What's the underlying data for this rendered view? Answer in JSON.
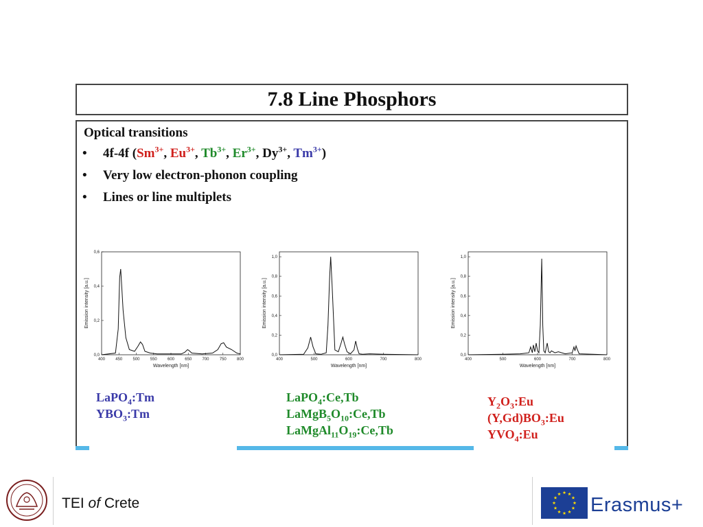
{
  "slide": {
    "title": "7.8 Line Phosphors",
    "section_title": "Optical transitions",
    "bullets": {
      "b1": {
        "prefix": "4f-4f (",
        "ions": [
          {
            "base": "Sm",
            "charge": "3+",
            "sep": ", ",
            "color": "#d0201c"
          },
          {
            "base": "Eu",
            "charge": "3+",
            "sep": ", ",
            "color": "#d0201c"
          },
          {
            "base": "Tb",
            "charge": "3+",
            "sep": ", ",
            "color": "#1f8a2a"
          },
          {
            "base": "Er",
            "charge": "3+",
            "sep": ", ",
            "color": "#1f8a2a"
          },
          {
            "base": "Dy",
            "charge": "3+",
            "sep": ", ",
            "color": "#111111"
          },
          {
            "base": "Tm",
            "charge": "3+",
            "sep": ")",
            "color": "#3a3aa8"
          }
        ]
      },
      "b2": "Very low electron-phonon coupling",
      "b3": "Lines or line multiplets"
    },
    "bullet_symbol": "•"
  },
  "chart_data": [
    {
      "type": "line",
      "xlabel": "Wavelength [nm]",
      "ylabel": "Emission intensity [a.u.]",
      "xlim": [
        400,
        800
      ],
      "ylim": [
        0,
        0.6
      ],
      "xticks": [
        "400",
        "450",
        "500",
        "550",
        "600",
        "650",
        "700",
        "750",
        "800"
      ],
      "yticks": [
        "0,0",
        "0,2",
        "0,4",
        "0,6"
      ],
      "x": [
        400,
        440,
        448,
        452,
        455,
        458,
        462,
        470,
        480,
        495,
        505,
        512,
        518,
        525,
        540,
        560,
        600,
        630,
        640,
        648,
        652,
        660,
        690,
        720,
        735,
        745,
        752,
        760,
        775,
        790,
        800
      ],
      "y": [
        0,
        0.01,
        0.15,
        0.45,
        0.5,
        0.4,
        0.26,
        0.1,
        0.03,
        0.02,
        0.05,
        0.075,
        0.06,
        0.02,
        0.01,
        0.005,
        0.005,
        0.005,
        0.015,
        0.03,
        0.025,
        0.01,
        0.005,
        0.01,
        0.03,
        0.065,
        0.07,
        0.045,
        0.03,
        0.01,
        0.005
      ]
    },
    {
      "type": "line",
      "xlabel": "Wavelength [nm]",
      "ylabel": "Emission intensity [a.u.]",
      "xlim": [
        400,
        800
      ],
      "ylim": [
        0,
        1.05
      ],
      "xticks": [
        "400",
        "500",
        "600",
        "700",
        "800"
      ],
      "yticks": [
        "0,0",
        "0,2",
        "0,4",
        "0,6",
        "0,8",
        "1,0"
      ],
      "x": [
        400,
        470,
        482,
        490,
        497,
        505,
        520,
        535,
        540,
        545,
        548,
        552,
        560,
        570,
        578,
        583,
        588,
        595,
        605,
        615,
        620,
        625,
        630,
        640,
        660,
        700,
        800
      ],
      "y": [
        0,
        0.005,
        0.07,
        0.18,
        0.08,
        0.01,
        0.005,
        0.02,
        0.3,
        0.8,
        1.0,
        0.7,
        0.05,
        0.03,
        0.12,
        0.18,
        0.11,
        0.03,
        0.01,
        0.05,
        0.14,
        0.06,
        0.01,
        0.005,
        0.01,
        0.005,
        0
      ]
    },
    {
      "type": "line",
      "xlabel": "Wavelength [nm]",
      "ylabel": "Emission intensity [a.u.]",
      "xlim": [
        400,
        800
      ],
      "ylim": [
        0,
        1.05
      ],
      "xticks": [
        "400",
        "500",
        "600",
        "700",
        "800"
      ],
      "yticks": [
        "0,0",
        "0,2",
        "0,4",
        "0,6",
        "0,8",
        "1,0"
      ],
      "x": [
        400,
        500,
        550,
        575,
        580,
        585,
        588,
        592,
        596,
        600,
        604,
        608,
        612,
        615,
        618,
        622,
        628,
        632,
        636,
        640,
        650,
        660,
        680,
        700,
        705,
        708,
        711,
        714,
        720,
        760,
        800
      ],
      "y": [
        0,
        0.005,
        0.01,
        0.02,
        0.08,
        0.02,
        0.1,
        0.03,
        0.12,
        0.04,
        0.02,
        0.3,
        0.98,
        0.3,
        0.04,
        0.02,
        0.12,
        0.03,
        0.02,
        0.04,
        0.02,
        0.03,
        0.01,
        0.02,
        0.08,
        0.04,
        0.09,
        0.06,
        0.01,
        0.005,
        0
      ]
    }
  ],
  "formulas": {
    "blue": [
      [
        {
          "t": "LaPO"
        },
        {
          "sub": "4"
        },
        {
          "t": ":Tm"
        }
      ],
      [
        {
          "t": "YBO"
        },
        {
          "sub": "3"
        },
        {
          "t": ":Tm"
        }
      ]
    ],
    "green": [
      [
        {
          "t": "LaPO"
        },
        {
          "sub": "4"
        },
        {
          "t": ":Ce,Tb"
        }
      ],
      [
        {
          "t": "LaMgB"
        },
        {
          "sub": "5"
        },
        {
          "t": "O"
        },
        {
          "sub": "10"
        },
        {
          "t": ":Ce,Tb"
        }
      ],
      [
        {
          "t": "LaMgAl"
        },
        {
          "sub": "11"
        },
        {
          "t": "O"
        },
        {
          "sub": "19"
        },
        {
          "t": ":Ce,Tb"
        }
      ]
    ],
    "red": [
      [
        {
          "t": "Y"
        },
        {
          "sub": "2"
        },
        {
          "t": "O"
        },
        {
          "sub": "3"
        },
        {
          "t": ":Eu"
        }
      ],
      [
        {
          "t": "(Y,Gd)BO"
        },
        {
          "sub": "3"
        },
        {
          "t": ":Eu"
        }
      ],
      [
        {
          "t": "YVO"
        },
        {
          "sub": "4"
        },
        {
          "t": ":Eu"
        }
      ]
    ]
  },
  "colors": {
    "blue": "#3a3aa8",
    "green": "#1f8a2a",
    "red": "#d0201c",
    "bar_light": "#55b8e8",
    "eu_blue": "#1c3f95",
    "eu_star": "#ffdd00"
  },
  "footer": {
    "institution_prefix": "TEI ",
    "institution_italic": "of",
    "institution_suffix": " Crete",
    "program": "Erasmus+",
    "seal_icon": "university-seal-icon",
    "flag_icon": "eu-flag-icon"
  }
}
